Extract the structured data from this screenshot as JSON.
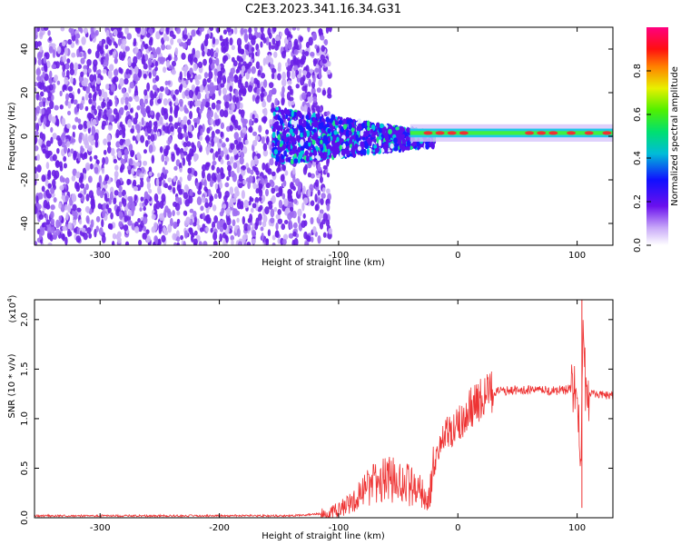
{
  "title": "C2E3.2023.341.16.34.G31",
  "colors": {
    "signal": "#ee3333",
    "noise_dense": "#6a1fe6",
    "noise_light": "#cdb4f7"
  },
  "chart_data": [
    {
      "type": "heatmap",
      "xlabel": "Height of straight line (km)",
      "ylabel": "Frequency (Hz)",
      "xlim": [
        -355,
        130
      ],
      "ylim": [
        -50,
        50
      ],
      "xticks": [
        -300,
        -200,
        -100,
        0,
        100
      ],
      "yticks": [
        -40,
        -20,
        0,
        20,
        40
      ],
      "colorbar": {
        "label": "Normalized spectral amplitude",
        "range": [
          0.0,
          1.0
        ],
        "ticks": [
          "0.0",
          "0.2",
          "0.4",
          "0.6",
          "0.8"
        ],
        "colormap": "rainbow"
      },
      "features": {
        "broadband_noise_x_range": [
          -355,
          -115
        ],
        "signal_onset_x": -155,
        "line_frequency_hz": 1.5
      }
    },
    {
      "type": "line",
      "xlabel": "Height of straight line (km)",
      "ylabel": "SNR (10 * v/v)",
      "scale_label": "(x10",
      "scale_exp": "4",
      "scale_close": ")",
      "xlim": [
        -355,
        130
      ],
      "ylim": [
        0.0,
        2.2
      ],
      "xticks": [
        -300,
        -200,
        -100,
        0,
        100
      ],
      "yticks": [
        "0.0",
        "0.5",
        "1.0",
        "1.5",
        "2.0"
      ],
      "ytick_values": [
        0.0,
        0.5,
        1.0,
        1.5,
        2.0
      ],
      "x": [
        -355,
        -300,
        -200,
        -140,
        -115,
        -100,
        -90,
        -80,
        -70,
        -60,
        -50,
        -40,
        -30,
        -25,
        -20,
        -15,
        -10,
        -5,
        0,
        5,
        10,
        15,
        20,
        25,
        30,
        40,
        50,
        60,
        70,
        80,
        90,
        95,
        100,
        103,
        105,
        107,
        110,
        120,
        130
      ],
      "y": [
        0.02,
        0.02,
        0.02,
        0.02,
        0.04,
        0.08,
        0.15,
        0.25,
        0.35,
        0.38,
        0.38,
        0.32,
        0.25,
        0.15,
        0.5,
        0.75,
        0.85,
        0.85,
        0.95,
        1.0,
        1.1,
        1.15,
        1.2,
        1.25,
        1.27,
        1.28,
        1.29,
        1.29,
        1.28,
        1.28,
        1.29,
        1.3,
        1.2,
        0.5,
        1.9,
        1.3,
        1.26,
        1.24,
        1.23
      ]
    }
  ]
}
